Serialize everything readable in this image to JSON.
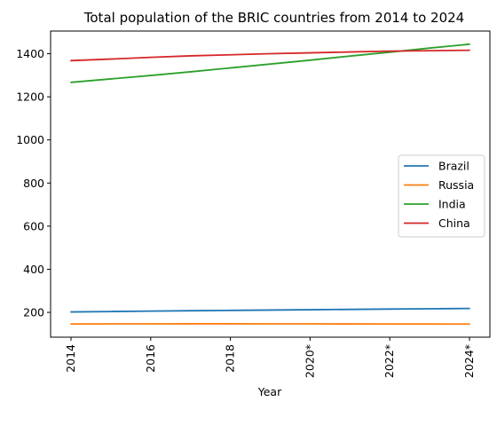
{
  "chart_data": {
    "type": "line",
    "title": "Total population of the BRIC countries from 2014 to 2024",
    "xlabel": "Year",
    "ylabel": "",
    "x": [
      "2014",
      "2015",
      "2016",
      "2017",
      "2018",
      "2019",
      "2020*",
      "2021*",
      "2022*",
      "2023*",
      "2024*"
    ],
    "x_tick_labels": [
      "2014",
      "2016",
      "2018",
      "2020*",
      "2022*",
      "2024*"
    ],
    "y_ticks": [
      200,
      400,
      600,
      800,
      1000,
      1200,
      1400
    ],
    "ylim": [
      85,
      1505
    ],
    "grid": false,
    "legend_position": "center-right",
    "series": [
      {
        "name": "Brazil",
        "color": "#1f77b4",
        "values": [
          202.0,
          204.0,
          205.8,
          207.6,
          209.2,
          210.8,
          212.4,
          213.9,
          215.4,
          216.8,
          218.2
        ]
      },
      {
        "name": "Russia",
        "color": "#ff7f0e",
        "values": [
          146.3,
          146.6,
          146.8,
          146.9,
          146.9,
          146.8,
          146.7,
          146.5,
          146.3,
          146.0,
          145.7
        ]
      },
      {
        "name": "India",
        "color": "#2ca02c",
        "values": [
          1267,
          1283,
          1299,
          1316,
          1334,
          1352,
          1370,
          1389,
          1407,
          1426,
          1444
        ]
      },
      {
        "name": "China",
        "color": "#d62728",
        "values": [
          1368,
          1375,
          1383,
          1390,
          1395,
          1400,
          1404,
          1408,
          1412,
          1414,
          1416
        ]
      }
    ]
  }
}
